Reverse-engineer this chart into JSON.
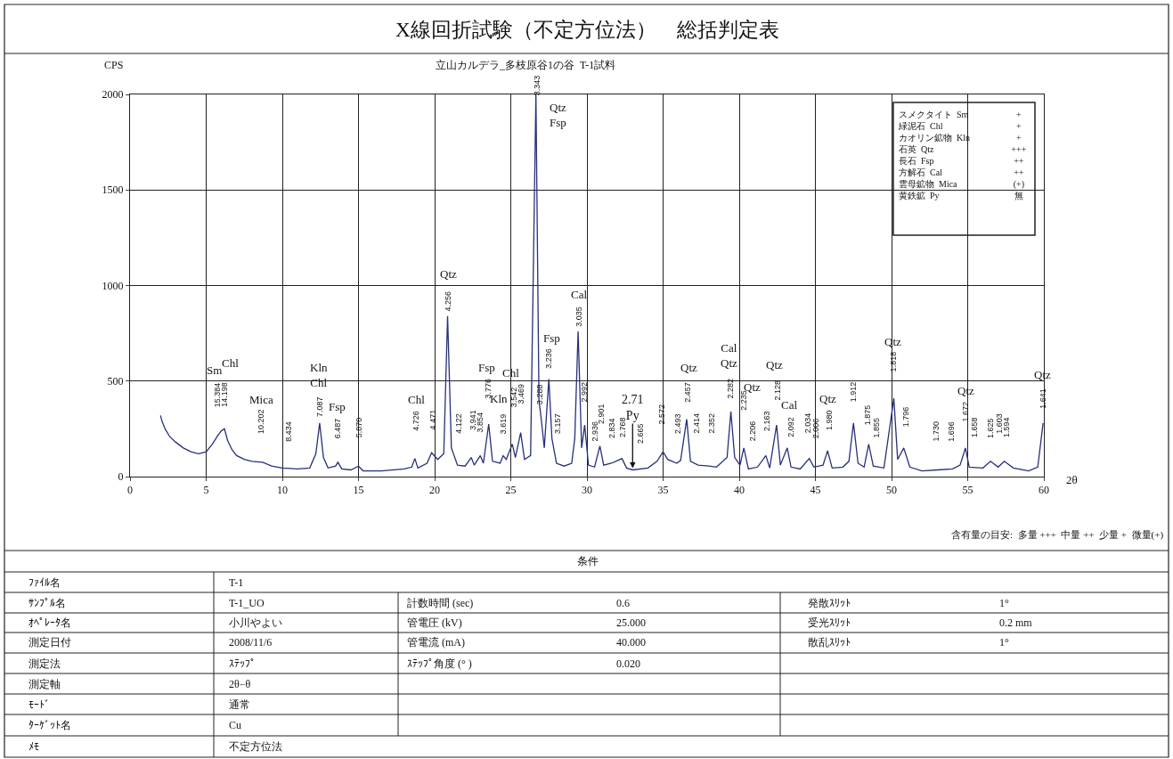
{
  "chart_data": {
    "type": "line",
    "title": "X線回折試験（不定方位法）　総括判定表",
    "subtitle": "立山カルデラ_多枝原谷1の谷  T-1試料",
    "xlabel": "2θ",
    "ylabel": "CPS",
    "xlim": [
      0,
      60
    ],
    "xticks": [
      0,
      5,
      10,
      15,
      20,
      25,
      30,
      35,
      40,
      45,
      50,
      55,
      60
    ],
    "ylim": [
      0,
      2000
    ],
    "yticks": [
      0,
      500,
      1000,
      1500,
      2000
    ],
    "grid": true,
    "series": [
      {
        "color": "#27307a",
        "x": [
          2.0,
          2.1,
          2.3,
          2.6,
          3.0,
          3.5,
          4.0,
          4.5,
          5.0,
          5.4,
          5.8,
          6.0,
          6.2,
          6.4,
          6.7,
          7.0,
          7.5,
          8.0,
          8.7,
          9.3,
          10.0,
          11.0,
          11.8,
          12.2,
          12.45,
          12.7,
          13.0,
          13.5,
          13.65,
          13.9,
          14.5,
          15.0,
          15.3,
          16.5,
          18.0,
          18.5,
          18.7,
          18.9,
          19.5,
          19.8,
          20.2,
          20.6,
          20.85,
          21.1,
          21.5,
          22.0,
          22.4,
          22.6,
          23.0,
          23.2,
          23.55,
          23.8,
          24.3,
          24.5,
          24.7,
          25.1,
          25.3,
          25.65,
          25.9,
          26.3,
          26.65,
          26.85,
          27.0,
          27.2,
          27.5,
          27.7,
          28.0,
          28.5,
          29.0,
          29.2,
          29.42,
          29.65,
          29.85,
          30.1,
          30.5,
          30.85,
          31.1,
          31.6,
          31.9,
          32.3,
          32.6,
          33.0,
          34.0,
          34.6,
          35.0,
          35.3,
          35.9,
          36.15,
          36.55,
          36.8,
          37.3,
          38.0,
          38.5,
          39.2,
          39.45,
          39.7,
          40.05,
          40.3,
          40.6,
          41.2,
          41.75,
          42.0,
          42.45,
          42.7,
          43.15,
          43.4,
          44.0,
          44.6,
          44.9,
          45.5,
          45.8,
          46.1,
          46.8,
          47.2,
          47.5,
          47.8,
          48.2,
          48.5,
          48.8,
          49.5,
          50.15,
          50.4,
          50.8,
          51.2,
          52.0,
          53.0,
          54.0,
          54.5,
          54.85,
          55.1,
          56.0,
          56.5,
          57.0,
          57.4,
          58.0,
          59.0,
          59.6,
          59.95
        ],
        "values": [
          320,
          290,
          250,
          210,
          180,
          150,
          130,
          120,
          130,
          170,
          220,
          240,
          250,
          190,
          140,
          110,
          90,
          80,
          75,
          55,
          45,
          40,
          45,
          120,
          280,
          100,
          45,
          55,
          75,
          40,
          35,
          55,
          30,
          30,
          40,
          50,
          95,
          45,
          70,
          125,
          90,
          120,
          840,
          150,
          60,
          55,
          100,
          60,
          110,
          70,
          275,
          80,
          70,
          110,
          90,
          170,
          100,
          230,
          90,
          110,
          2000,
          400,
          300,
          150,
          510,
          200,
          70,
          55,
          70,
          200,
          760,
          150,
          270,
          60,
          50,
          160,
          60,
          70,
          80,
          95,
          45,
          35,
          45,
          80,
          130,
          90,
          70,
          85,
          300,
          80,
          60,
          55,
          50,
          100,
          340,
          100,
          60,
          150,
          40,
          50,
          110,
          45,
          270,
          60,
          150,
          50,
          40,
          95,
          50,
          60,
          135,
          45,
          50,
          80,
          280,
          70,
          50,
          170,
          55,
          45,
          410,
          90,
          150,
          50,
          30,
          35,
          40,
          60,
          150,
          50,
          45,
          80,
          50,
          80,
          45,
          30,
          50,
          280
        ]
      }
    ],
    "annotations": [
      "Sm",
      "Chl",
      "Mica",
      "Kln\nChl",
      "Fsp",
      "Chl",
      "Qtz",
      "Fsp",
      "Chl",
      "Kln",
      "Qtz\nFsp",
      "Fsp",
      "Cal",
      "Qtz",
      "Cal\nQtz",
      "Qtz",
      "Qtz",
      "Cal",
      "Qtz",
      "Qtz",
      "Qtz",
      "Qtz",
      {
        "text": "2.71\nPy",
        "x": 33.0,
        "y": 35
      },
      "15.384",
      "14.198",
      "10.202",
      "8.434",
      "7.087",
      "6.487",
      "5.870",
      "4.726",
      "4.471",
      "4.256",
      "4.122",
      "3.941",
      "3.854",
      "3.776",
      "3.619",
      "3.542",
      "3.469",
      "3.343",
      "3.288",
      "3.236",
      "3.157",
      "3.035",
      "2.992",
      "2.936",
      "2.901",
      "2.834",
      "2.768",
      "2.665",
      "2.572",
      "2.493",
      "2.457",
      "2.414",
      "2.352",
      "2.282",
      "2.235",
      "2.206",
      "2.163",
      "2.128",
      "2.092",
      "2.034",
      "2.006",
      "1.980",
      "1.912",
      "1.875",
      "1.855",
      "1.818",
      "1.796",
      "1.730",
      "1.696",
      "1.672",
      "1.658",
      "1.625",
      "1.603",
      "1.594",
      "1.641",
      "スメクタイト  Sm",
      "+",
      "緑泥石  Chl",
      "+",
      "カオリン鉱物  Kln",
      "+",
      "石英  Qtz",
      "+++",
      "長石  Fsp",
      "++",
      "方解石  Cal",
      "++",
      "雲母鉱物  Mica",
      "(+)",
      "黄鉄鉱  Py",
      "無",
      "含有量の目安:  多量 +++  中量 ++  少量 +  微量(+)",
      "条件",
      "ﾌｧｲﾙ名",
      "T-1",
      "ｻﾝﾌﾟﾙ名",
      "T-1_UO",
      "計数時間 (sec)",
      "0.6",
      "発散ｽﾘｯﾄ",
      "1°",
      "ｵﾍﾟﾚｰﾀ名",
      "小川やよい",
      "管電圧 (kV)",
      "25.000",
      "受光ｽﾘｯﾄ",
      "0.2 mm",
      "測定日付",
      "2008/11/6",
      "管電流 (mA)",
      "40.000",
      "散乱ｽﾘｯﾄ",
      "1°",
      "測定法",
      "ｽﾃｯﾌﾟ",
      "ｽﾃｯﾌﾟ角度 (° )",
      "0.020",
      "測定軸",
      "2θ−θ",
      "ﾓｰﾄﾞ",
      "通常",
      "ﾀｰｹﾞｯﾄ名",
      "Cu",
      "ﾒﾓ",
      "不定方位法"
    ]
  }
}
